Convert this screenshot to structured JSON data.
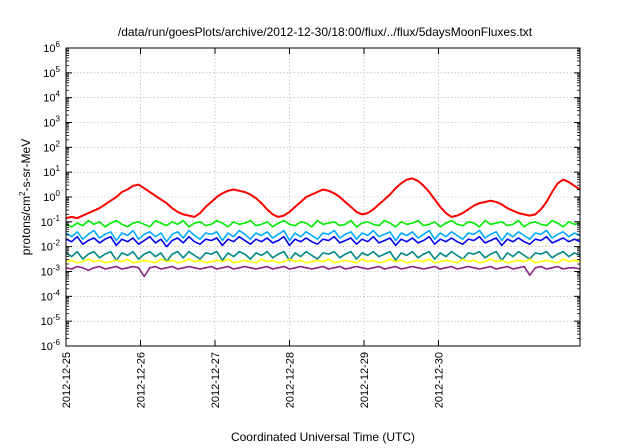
{
  "chart_data": {
    "type": "line",
    "title": "/data/run/goesPlots/archive/2012-12-30/18:00/flux/../flux/5daysMoonFluxes.txt",
    "xlabel": "Coordinated Universal Time (UTC)",
    "ylabel_main": "protons/cm",
    "ylabel_sup": "2",
    "ylabel_tail": "-s-sr-MeV",
    "y_scale": "log",
    "ylim_exp": [
      -6,
      6
    ],
    "y_tick_exponents": [
      -6,
      -5,
      -4,
      -3,
      -2,
      -1,
      0,
      1,
      2,
      3,
      4,
      5,
      6
    ],
    "x_ticks": [
      "2012-12-25",
      "2012-12-26",
      "2012-12-27",
      "2012-12-28",
      "2012-12-29",
      "2012-12-30"
    ],
    "xlim_days": [
      0,
      6.9
    ],
    "grid": true,
    "legend": "none",
    "series": [
      {
        "color": "#ff0000",
        "values_log10": [
          -0.85,
          -0.8,
          -0.85,
          -0.75,
          -0.65,
          -0.55,
          -0.45,
          -0.3,
          -0.15,
          0.0,
          0.2,
          0.3,
          0.45,
          0.5,
          0.35,
          0.2,
          0.05,
          -0.1,
          -0.25,
          -0.45,
          -0.6,
          -0.7,
          -0.75,
          -0.8,
          -0.65,
          -0.4,
          -0.2,
          0.0,
          0.15,
          0.25,
          0.3,
          0.25,
          0.2,
          0.1,
          -0.05,
          -0.25,
          -0.5,
          -0.7,
          -0.8,
          -0.75,
          -0.6,
          -0.4,
          -0.2,
          0.0,
          0.1,
          0.2,
          0.3,
          0.25,
          0.15,
          0.0,
          -0.2,
          -0.4,
          -0.6,
          -0.7,
          -0.65,
          -0.5,
          -0.3,
          -0.1,
          0.1,
          0.35,
          0.55,
          0.7,
          0.75,
          0.65,
          0.45,
          0.2,
          -0.1,
          -0.4,
          -0.65,
          -0.8,
          -0.75,
          -0.65,
          -0.5,
          -0.35,
          -0.25,
          -0.2,
          -0.15,
          -0.2,
          -0.3,
          -0.45,
          -0.55,
          -0.65,
          -0.7,
          -0.75,
          -0.7,
          -0.5,
          -0.2,
          0.2,
          0.55,
          0.7,
          0.6,
          0.45,
          0.3
        ]
      },
      {
        "color": "#00ee00",
        "values_log10": [
          -1.1,
          -1.2,
          -1.05,
          -1.15,
          -0.95,
          -1.1,
          -1.0,
          -1.2,
          -1.05,
          -0.95,
          -1.1,
          -1.2,
          -1.05,
          -1.0,
          -1.1,
          -1.2,
          -0.95,
          -1.05,
          -1.15,
          -1.0,
          -1.1,
          -0.95,
          -1.2,
          -1.05,
          -1.0,
          -1.15,
          -1.1,
          -0.95,
          -1.05,
          -1.2,
          -1.0,
          -1.1,
          -1.05,
          -0.95,
          -1.15,
          -1.1,
          -1.0,
          -1.2,
          -1.05,
          -0.95,
          -1.1,
          -1.15,
          -1.0,
          -1.05,
          -1.2,
          -0.95,
          -1.1,
          -1.05,
          -1.0,
          -1.15,
          -1.1,
          -0.95,
          -1.2,
          -1.05,
          -1.0,
          -1.1,
          -1.15,
          -0.95,
          -1.05,
          -1.2,
          -1.0,
          -1.1,
          -1.05,
          -0.95,
          -1.15,
          -1.1,
          -1.0,
          -1.2,
          -1.05,
          -0.95,
          -1.1,
          -1.15,
          -1.0,
          -1.05,
          -1.2,
          -0.95,
          -1.1,
          -1.05,
          -1.0,
          -1.15,
          -1.1,
          -0.95,
          -1.2,
          -1.05,
          -1.0,
          -1.1,
          -1.15,
          -0.95,
          -1.05,
          -1.2,
          -1.0,
          -1.1,
          -1.05
        ]
      },
      {
        "color": "#00aaff",
        "values_log10": [
          -1.45,
          -1.6,
          -1.4,
          -1.7,
          -1.5,
          -1.35,
          -1.65,
          -1.5,
          -1.4,
          -1.75,
          -1.45,
          -1.55,
          -1.35,
          -1.7,
          -1.5,
          -1.4,
          -1.6,
          -1.45,
          -1.8,
          -1.5,
          -1.4,
          -1.65,
          -1.35,
          -1.55,
          -1.7,
          -1.45,
          -1.5,
          -1.4,
          -1.75,
          -1.45,
          -1.6,
          -1.35,
          -1.5,
          -1.7,
          -1.45,
          -1.55,
          -1.4,
          -1.65,
          -1.5,
          -1.35,
          -1.75,
          -1.45,
          -1.6,
          -1.4,
          -1.55,
          -1.7,
          -1.45,
          -1.5,
          -1.35,
          -1.65,
          -1.5,
          -1.4,
          -1.7,
          -1.45,
          -1.55,
          -1.35,
          -1.6,
          -1.5,
          -1.4,
          -1.75,
          -1.45,
          -1.55,
          -1.4,
          -1.65,
          -1.5,
          -1.35,
          -1.7,
          -1.45,
          -1.6,
          -1.4,
          -1.55,
          -1.7,
          -1.45,
          -1.5,
          -1.35,
          -1.65,
          -1.5,
          -1.4,
          -1.75,
          -1.45,
          -1.6,
          -1.4,
          -1.55,
          -1.7,
          -1.45,
          -1.5,
          -1.35,
          -1.65,
          -1.5,
          -1.4,
          -1.6,
          -1.45,
          -1.55
        ]
      },
      {
        "color": "#0000ee",
        "values_log10": [
          -1.7,
          -1.8,
          -1.6,
          -1.9,
          -1.75,
          -1.65,
          -1.85,
          -1.7,
          -1.6,
          -1.95,
          -1.7,
          -1.8,
          -1.65,
          -1.9,
          -1.75,
          -1.6,
          -1.85,
          -1.7,
          -2.0,
          -1.75,
          -1.65,
          -1.85,
          -1.6,
          -1.8,
          -1.9,
          -1.7,
          -1.75,
          -1.65,
          -1.95,
          -1.7,
          -1.8,
          -1.6,
          -1.75,
          -1.9,
          -1.7,
          -1.8,
          -1.65,
          -1.85,
          -1.75,
          -1.6,
          -1.95,
          -1.7,
          -1.8,
          -1.65,
          -1.8,
          -1.9,
          -1.7,
          -1.75,
          -1.6,
          -1.85,
          -1.75,
          -1.65,
          -1.9,
          -1.7,
          -1.8,
          -1.6,
          -1.85,
          -1.75,
          -1.65,
          -1.95,
          -1.7,
          -1.8,
          -1.65,
          -1.85,
          -1.75,
          -1.6,
          -1.9,
          -1.7,
          -1.8,
          -1.65,
          -1.8,
          -1.9,
          -1.7,
          -1.75,
          -1.6,
          -1.85,
          -1.75,
          -1.65,
          -1.95,
          -1.7,
          -1.8,
          -1.65,
          -1.8,
          -1.9,
          -1.7,
          -1.75,
          -1.6,
          -1.85,
          -1.75,
          -1.65,
          -1.8,
          -1.7,
          -1.8
        ]
      },
      {
        "color": "#008888",
        "values_log10": [
          -2.25,
          -2.4,
          -2.2,
          -2.5,
          -2.3,
          -2.2,
          -2.45,
          -2.3,
          -2.2,
          -2.55,
          -2.25,
          -2.35,
          -2.2,
          -2.5,
          -2.3,
          -2.2,
          -2.4,
          -2.25,
          -2.6,
          -2.3,
          -2.2,
          -2.45,
          -2.2,
          -2.35,
          -2.5,
          -2.25,
          -2.3,
          -2.2,
          -2.55,
          -2.25,
          -2.4,
          -2.2,
          -2.3,
          -2.5,
          -2.25,
          -2.35,
          -2.2,
          -2.45,
          -2.3,
          -2.2,
          -2.55,
          -2.25,
          -2.4,
          -2.2,
          -2.35,
          -2.5,
          -2.25,
          -2.3,
          -2.2,
          -2.45,
          -2.3,
          -2.2,
          -2.5,
          -2.25,
          -2.35,
          -2.2,
          -2.4,
          -2.3,
          -2.2,
          -2.55,
          -2.25,
          -2.35,
          -2.2,
          -2.45,
          -2.3,
          -2.2,
          -2.5,
          -2.25,
          -2.4,
          -2.2,
          -2.35,
          -2.5,
          -2.25,
          -2.3,
          -2.2,
          -2.45,
          -2.3,
          -2.2,
          -2.55,
          -2.25,
          -2.4,
          -2.2,
          -2.35,
          -2.5,
          -2.25,
          -2.3,
          -2.2,
          -2.45,
          -2.3,
          -2.2,
          -2.4,
          -2.25,
          -2.35
        ]
      },
      {
        "color": "#ffff00",
        "values_log10": [
          -2.6,
          -2.55,
          -2.65,
          -2.6,
          -2.5,
          -2.6,
          -2.55,
          -2.65,
          -2.6,
          -2.55,
          -2.6,
          -2.5,
          -2.65,
          -2.6,
          -2.55,
          -2.6,
          -2.65,
          -2.5,
          -2.6,
          -2.55,
          -2.65,
          -2.6,
          -2.5,
          -2.6,
          -2.55,
          -2.65,
          -2.6,
          -2.55,
          -2.6,
          -2.5,
          -2.65,
          -2.6,
          -2.55,
          -2.6,
          -2.65,
          -2.5,
          -2.6,
          -2.55,
          -2.65,
          -2.6,
          -2.5,
          -2.6,
          -2.55,
          -2.65,
          -2.6,
          -2.55,
          -2.6,
          -2.5,
          -2.65,
          -2.6,
          -2.55,
          -2.6,
          -2.65,
          -2.5,
          -2.6,
          -2.55,
          -2.65,
          -2.6,
          -2.5,
          -2.6,
          -2.55,
          -2.65,
          -2.6,
          -2.55,
          -2.6,
          -2.5,
          -2.65,
          -2.6,
          -2.55,
          -2.6,
          -2.65,
          -2.5,
          -2.6,
          -2.55,
          -2.65,
          -2.6,
          -2.5,
          -2.6,
          -2.55,
          -2.65,
          -2.6,
          -2.55,
          -2.6,
          -2.5,
          -2.65,
          -2.6,
          -2.55,
          -2.6,
          -2.65,
          -2.5,
          -2.6,
          -2.55,
          -2.6
        ]
      },
      {
        "color": "#882288",
        "values_log10": [
          -2.85,
          -2.9,
          -2.8,
          -2.85,
          -2.95,
          -2.85,
          -2.8,
          -2.9,
          -2.85,
          -2.8,
          -2.9,
          -2.85,
          -2.8,
          -2.85,
          -3.2,
          -2.85,
          -2.8,
          -2.9,
          -2.85,
          -2.8,
          -2.9,
          -2.85,
          -2.8,
          -2.85,
          -2.9,
          -2.85,
          -2.8,
          -2.9,
          -2.85,
          -2.8,
          -2.9,
          -2.85,
          -2.8,
          -2.85,
          -2.9,
          -2.85,
          -2.8,
          -2.9,
          -2.85,
          -2.8,
          -2.9,
          -2.85,
          -2.8,
          -2.85,
          -2.9,
          -2.85,
          -2.8,
          -2.9,
          -2.85,
          -2.8,
          -2.9,
          -2.85,
          -2.8,
          -2.85,
          -2.9,
          -2.85,
          -2.8,
          -2.9,
          -2.85,
          -2.8,
          -2.9,
          -2.85,
          -2.8,
          -2.85,
          -2.9,
          -2.85,
          -2.8,
          -2.9,
          -2.85,
          -2.8,
          -2.9,
          -2.85,
          -2.8,
          -2.85,
          -2.9,
          -2.85,
          -2.8,
          -2.9,
          -2.85,
          -2.8,
          -2.9,
          -2.85,
          -2.8,
          -3.15,
          -2.85,
          -2.8,
          -2.9,
          -2.85,
          -2.8,
          -2.9,
          -2.85,
          -2.85,
          -2.9
        ]
      }
    ]
  }
}
